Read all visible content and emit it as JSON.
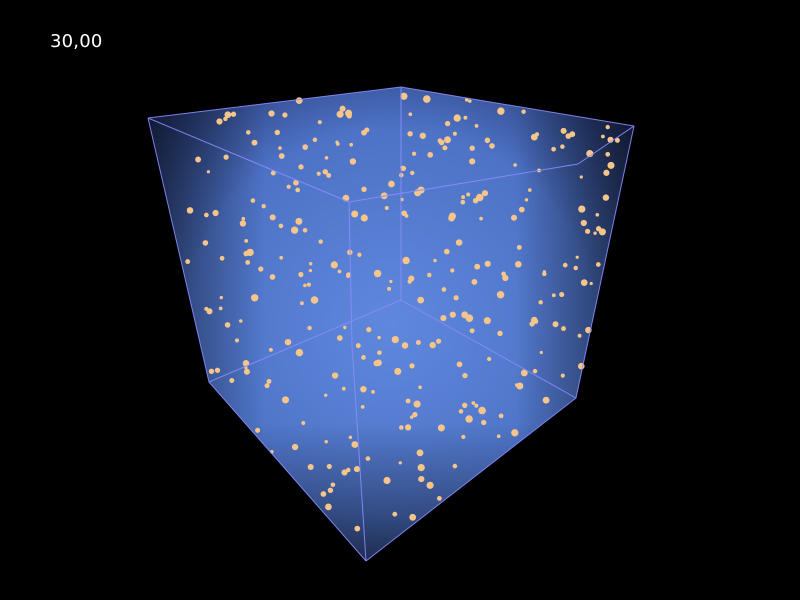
{
  "readout": {
    "value": "30,00"
  },
  "scene": {
    "background_color": "#000000",
    "volume_color": "#5a82d8",
    "edge_color": "#8a8cff",
    "particle_color": "#f5c58a",
    "particle_count": 300
  }
}
